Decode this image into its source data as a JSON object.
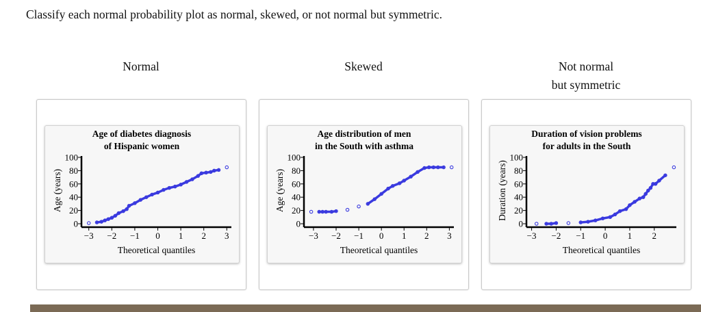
{
  "question": "Classify each normal probability plot as normal, skewed, or not normal but symmetric.",
  "columns": [
    {
      "label_lines": [
        "Normal"
      ]
    },
    {
      "label_lines": [
        "Skewed"
      ]
    },
    {
      "label_lines": [
        "Not normal",
        "but symmetric"
      ]
    }
  ],
  "colors": {
    "points": "#3a3adf",
    "bottom_bar": "#7b6a55"
  },
  "chart_data": [
    {
      "type": "scatter",
      "title_lines": [
        "Age of diabetes diagnosis",
        "of Hispanic women"
      ],
      "xlabel": "Theoretical quantiles",
      "ylabel": "Age (years)",
      "xlim": [
        -3.2,
        3.2
      ],
      "ylim": [
        0,
        100
      ],
      "xticks": [
        -3,
        -2,
        -1,
        0,
        1,
        2,
        3
      ],
      "yticks": [
        0,
        20,
        40,
        60,
        80,
        100
      ],
      "points": [
        [
          -3,
          1
        ],
        [
          -2.65,
          2
        ],
        [
          -2.45,
          3
        ],
        [
          -2.3,
          5
        ],
        [
          -2.15,
          7
        ],
        [
          -2,
          9
        ],
        [
          -1.85,
          12
        ],
        [
          -1.7,
          16
        ],
        [
          -1.5,
          19
        ],
        [
          -1.35,
          22
        ],
        [
          -1.25,
          27
        ],
        [
          -1,
          31
        ],
        [
          -0.75,
          36
        ],
        [
          -0.5,
          40
        ],
        [
          -0.25,
          44
        ],
        [
          0,
          47
        ],
        [
          0.25,
          51
        ],
        [
          0.5,
          54
        ],
        [
          0.75,
          56
        ],
        [
          1,
          59
        ],
        [
          1.25,
          63
        ],
        [
          1.5,
          67
        ],
        [
          1.75,
          72
        ],
        [
          1.9,
          76
        ],
        [
          2.1,
          77
        ],
        [
          2.3,
          78
        ],
        [
          2.45,
          80
        ],
        [
          2.65,
          81
        ],
        [
          3,
          85
        ]
      ]
    },
    {
      "type": "scatter",
      "title_lines": [
        "Age distribution of men",
        "in the South with asthma"
      ],
      "xlabel": "Theoretical quantiles",
      "ylabel": "Age (years)",
      "xlim": [
        -3.3,
        3.2
      ],
      "ylim": [
        0,
        100
      ],
      "xticks": [
        -3,
        -2,
        -1,
        0,
        1,
        2,
        3
      ],
      "yticks": [
        0,
        20,
        40,
        60,
        80,
        100
      ],
      "points": [
        [
          -3.1,
          18
        ],
        [
          -2.75,
          18
        ],
        [
          -2.6,
          18
        ],
        [
          -2.45,
          18
        ],
        [
          -2.2,
          18
        ],
        [
          -2,
          19
        ],
        [
          -1.5,
          21
        ],
        [
          -1,
          26
        ],
        [
          -0.6,
          30
        ],
        [
          -0.3,
          37
        ],
        [
          0,
          45
        ],
        [
          0.3,
          53
        ],
        [
          0.5,
          57
        ],
        [
          0.8,
          61
        ],
        [
          1,
          65
        ],
        [
          1.3,
          71
        ],
        [
          1.6,
          78
        ],
        [
          1.9,
          84
        ],
        [
          2.1,
          85
        ],
        [
          2.3,
          85
        ],
        [
          2.5,
          85
        ],
        [
          2.75,
          85
        ],
        [
          3.1,
          85
        ]
      ]
    },
    {
      "type": "scatter",
      "title_lines": [
        "Duration of vision problems",
        "for adults in the South"
      ],
      "xlabel": "Theoretical quantiles",
      "ylabel": "Duration (years)",
      "xlim": [
        -3.1,
        2.9
      ],
      "ylim": [
        0,
        100
      ],
      "xticks": [
        -3,
        -2,
        -1,
        0,
        1,
        2
      ],
      "yticks": [
        0,
        20,
        40,
        60,
        80,
        100
      ],
      "points": [
        [
          -2.8,
          0
        ],
        [
          -2.4,
          0
        ],
        [
          -2.2,
          0
        ],
        [
          -2,
          1
        ],
        [
          -1.5,
          1
        ],
        [
          -1,
          2
        ],
        [
          -0.7,
          3
        ],
        [
          -0.4,
          5
        ],
        [
          -0.1,
          8
        ],
        [
          0.2,
          10
        ],
        [
          0.4,
          14
        ],
        [
          0.6,
          19
        ],
        [
          0.85,
          22
        ],
        [
          1,
          28
        ],
        [
          1.2,
          33
        ],
        [
          1.4,
          38
        ],
        [
          1.55,
          40
        ],
        [
          1.65,
          45
        ],
        [
          1.75,
          50
        ],
        [
          1.85,
          54
        ],
        [
          1.95,
          60
        ],
        [
          2.05,
          60
        ],
        [
          2.2,
          65
        ],
        [
          2.45,
          73
        ],
        [
          2.8,
          85
        ]
      ]
    }
  ]
}
